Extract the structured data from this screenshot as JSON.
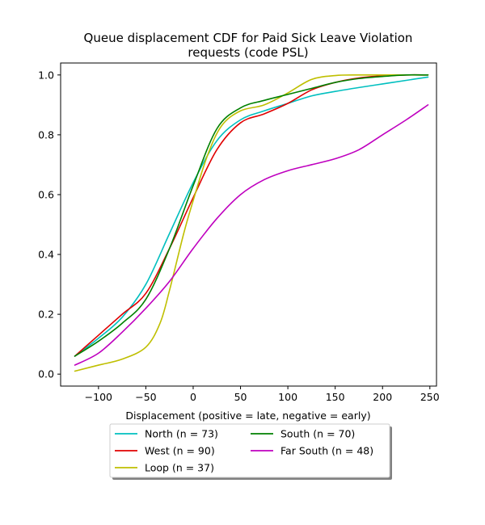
{
  "chart_data": {
    "type": "line",
    "title_line1": "Queue displacement CDF for Paid Sick Leave Violation",
    "title_line2": "requests (code PSL)",
    "xlabel": "Displacement (positive = late, negative = early)",
    "ylabel": "",
    "xlim": [
      -140,
      257
    ],
    "ylim": [
      -0.04,
      1.04
    ],
    "xticks": [
      -100,
      -50,
      0,
      50,
      100,
      150,
      200,
      250
    ],
    "xtick_labels": [
      "−100",
      "−50",
      "0",
      "50",
      "100",
      "150",
      "200",
      "250"
    ],
    "yticks": [
      0.0,
      0.2,
      0.4,
      0.6,
      0.8,
      1.0
    ],
    "ytick_labels": [
      "0.0",
      "0.2",
      "0.4",
      "0.6",
      "0.8",
      "1.0"
    ],
    "grid": false,
    "legend_position": "bottom-center",
    "series": [
      {
        "name": "North (n = 73)",
        "color": "#00bfbf",
        "x": [
          -125,
          -100,
          -75,
          -50,
          -25,
          0,
          25,
          50,
          75,
          100,
          125,
          150,
          175,
          200,
          225,
          248
        ],
        "y": [
          0.06,
          0.12,
          0.19,
          0.3,
          0.47,
          0.64,
          0.78,
          0.85,
          0.88,
          0.905,
          0.93,
          0.945,
          0.958,
          0.97,
          0.982,
          0.993
        ]
      },
      {
        "name": "West (n = 90)",
        "color": "#e00000",
        "x": [
          -125,
          -100,
          -75,
          -50,
          -25,
          0,
          25,
          50,
          75,
          100,
          125,
          150,
          175,
          200,
          225,
          248
        ],
        "y": [
          0.06,
          0.13,
          0.2,
          0.27,
          0.42,
          0.59,
          0.75,
          0.84,
          0.87,
          0.905,
          0.95,
          0.975,
          0.99,
          0.997,
          1.0,
          1.0
        ]
      },
      {
        "name": "Loop (n = 37)",
        "color": "#bfbf00",
        "x": [
          -125,
          -100,
          -75,
          -50,
          -35,
          -25,
          -10,
          0,
          15,
          30,
          50,
          75,
          100,
          125,
          150,
          175,
          200,
          248
        ],
        "y": [
          0.01,
          0.03,
          0.05,
          0.09,
          0.17,
          0.28,
          0.47,
          0.58,
          0.73,
          0.83,
          0.88,
          0.9,
          0.94,
          0.985,
          0.998,
          1.0,
          1.0,
          1.0
        ]
      },
      {
        "name": "South (n = 70)",
        "color": "#008000",
        "x": [
          -125,
          -100,
          -75,
          -50,
          -25,
          0,
          25,
          50,
          75,
          100,
          125,
          150,
          175,
          200,
          225,
          248
        ],
        "y": [
          0.06,
          0.11,
          0.17,
          0.25,
          0.42,
          0.63,
          0.82,
          0.89,
          0.915,
          0.935,
          0.955,
          0.975,
          0.988,
          0.995,
          1.0,
          1.0
        ]
      },
      {
        "name": "Far South (n = 48)",
        "color": "#bf00bf",
        "x": [
          -125,
          -100,
          -75,
          -50,
          -25,
          0,
          25,
          50,
          75,
          100,
          125,
          150,
          175,
          200,
          225,
          248
        ],
        "y": [
          0.03,
          0.07,
          0.14,
          0.22,
          0.31,
          0.42,
          0.52,
          0.6,
          0.65,
          0.68,
          0.7,
          0.72,
          0.75,
          0.8,
          0.85,
          0.9
        ]
      }
    ]
  }
}
